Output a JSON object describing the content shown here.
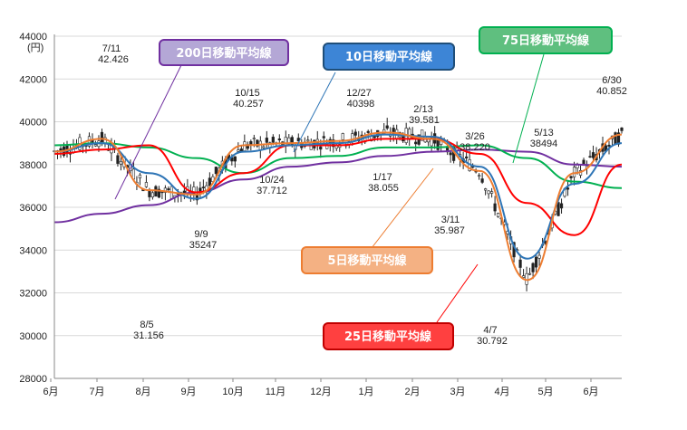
{
  "chart_data": {
    "type": "line",
    "y_unit": "(円)",
    "y_ticks": [
      "44000",
      "42000",
      "40000",
      "38000",
      "36000",
      "34000",
      "32000",
      "30000",
      "28000"
    ],
    "ylim": [
      28000,
      44000
    ],
    "x_ticks": [
      "6月",
      "7月",
      "8月",
      "9月",
      "10月",
      "11月",
      "12月",
      "1月",
      "2月",
      "3月",
      "4月",
      "5月",
      "6月"
    ],
    "x": [
      "6月",
      "7月",
      "8月",
      "9月",
      "10月",
      "11月",
      "12月",
      "1月",
      "2月",
      "3月",
      "4月",
      "5月",
      "6月"
    ],
    "series": [
      {
        "name": "5日移動平均線",
        "color": "#ed7d31",
        "values": [
          38600,
          39200,
          36800,
          36600,
          38900,
          39000,
          39100,
          39500,
          39200,
          37700,
          32600,
          37600,
          39400
        ]
      },
      {
        "name": "10日移動平均線",
        "color": "#2e75b6",
        "values": [
          38600,
          39000,
          37600,
          36400,
          38600,
          38900,
          39000,
          39400,
          39300,
          37900,
          33600,
          37100,
          39000
        ]
      },
      {
        "name": "25日移動平均線",
        "color": "#ff0000",
        "values": [
          38500,
          38700,
          38900,
          36700,
          37600,
          38900,
          38900,
          39200,
          39200,
          38500,
          36200,
          34700,
          38000
        ]
      },
      {
        "name": "75日移動平均線",
        "color": "#00b050",
        "values": [
          38900,
          39000,
          38800,
          38300,
          37600,
          38300,
          38400,
          38800,
          38800,
          38900,
          38300,
          37200,
          36900
        ]
      },
      {
        "name": "200日移動平均線",
        "color": "#7030a0",
        "values": [
          35300,
          35700,
          36100,
          36700,
          37300,
          37900,
          38100,
          38400,
          38600,
          38700,
          38600,
          38000,
          37900
        ]
      }
    ],
    "annotations": [
      {
        "date": "7/11",
        "value": "42.426"
      },
      {
        "date": "8/5",
        "value": "31.156"
      },
      {
        "date": "9/9",
        "value": "35247"
      },
      {
        "date": "10/15",
        "value": "40.257"
      },
      {
        "date": "10/24",
        "value": "37.712"
      },
      {
        "date": "12/27",
        "value": "40398"
      },
      {
        "date": "1/17",
        "value": "38.055"
      },
      {
        "date": "2/13",
        "value": "39.581"
      },
      {
        "date": "3/11",
        "value": "35.987"
      },
      {
        "date": "3/26",
        "value": "38.220"
      },
      {
        "date": "4/7",
        "value": "30.792"
      },
      {
        "date": "5/13",
        "value": "38494"
      },
      {
        "date": "6/30",
        "value": "40.852"
      }
    ],
    "grid": true,
    "legend": "callout labels"
  },
  "labels": {
    "ma200": "200日移動平均線",
    "ma10": "10日移動平均線",
    "ma75": "75日移動平均線",
    "ma5": "5日移動平均線",
    "ma25": "25日移動平均線"
  },
  "colors": {
    "ma5": "#ed7d31",
    "ma10": "#2e75b6",
    "ma25": "#ff0000",
    "ma75": "#00b050",
    "ma200": "#7030a0",
    "candle": "#222222"
  }
}
